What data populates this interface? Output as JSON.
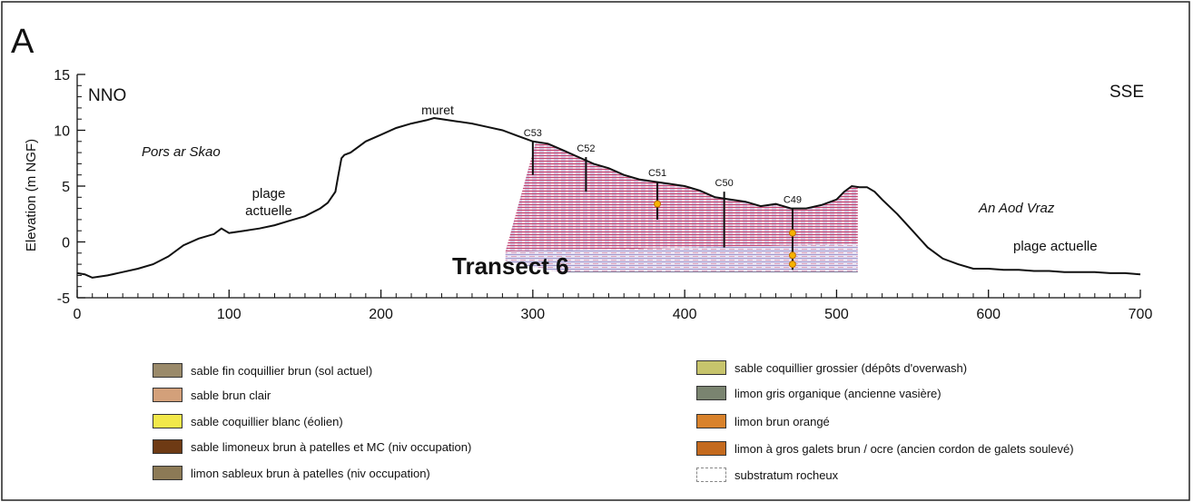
{
  "panel_label": "A",
  "chart_data": {
    "type": "line",
    "ylabel": "Elevation (m NGF)",
    "xlim": [
      0,
      700
    ],
    "ylim": [
      -5,
      15
    ],
    "x_ticks": [
      0,
      100,
      200,
      300,
      400,
      500,
      600,
      700
    ],
    "y_ticks": [
      -5,
      0,
      5,
      10,
      15
    ],
    "grid": false,
    "series": [
      {
        "x": [
          0,
          5,
          10,
          20,
          30,
          40,
          50,
          60,
          70,
          80,
          90,
          95,
          100,
          110,
          120,
          130,
          140,
          150,
          160,
          165,
          170,
          172,
          174,
          176,
          180,
          185,
          190,
          200,
          210,
          220,
          230,
          235,
          240,
          250,
          260,
          270,
          280,
          290,
          300,
          310,
          320,
          330,
          340,
          350,
          360,
          370,
          380,
          390,
          400,
          410,
          420,
          430,
          440,
          450,
          460,
          470,
          480,
          490,
          500,
          505,
          510,
          515,
          520,
          525,
          530,
          540,
          550,
          560,
          570,
          580,
          590,
          600,
          610,
          620,
          630,
          640,
          650,
          660,
          670,
          680,
          690,
          700
        ],
        "y": [
          -2.8,
          -2.9,
          -3.2,
          -3.0,
          -2.7,
          -2.4,
          -2.0,
          -1.3,
          -0.3,
          0.3,
          0.7,
          1.2,
          0.8,
          1.0,
          1.2,
          1.5,
          1.9,
          2.3,
          3.0,
          3.5,
          4.5,
          6.0,
          7.5,
          7.8,
          8.0,
          8.5,
          9.0,
          9.6,
          10.2,
          10.6,
          10.9,
          11.1,
          11.0,
          10.8,
          10.6,
          10.3,
          10.0,
          9.5,
          9.0,
          8.8,
          8.2,
          7.6,
          7.0,
          6.6,
          6.0,
          5.6,
          5.4,
          5.2,
          5.0,
          4.6,
          4.0,
          3.8,
          3.6,
          3.2,
          3.4,
          3.0,
          3.0,
          3.3,
          3.8,
          4.5,
          5.0,
          4.9,
          4.9,
          4.5,
          3.8,
          2.5,
          1.0,
          -0.5,
          -1.5,
          -2.0,
          -2.4,
          -2.4,
          -2.5,
          -2.5,
          -2.6,
          -2.6,
          -2.7,
          -2.7,
          -2.7,
          -2.8,
          -2.8,
          -2.9
        ]
      }
    ],
    "annotations": [
      {
        "text": "NNO"
      },
      {
        "text": "SSE"
      },
      {
        "text": "Pors ar Skao"
      },
      {
        "text": "plage"
      },
      {
        "text": "actuelle"
      },
      {
        "text": "muret"
      },
      {
        "text": "An Aod Vraz"
      },
      {
        "text": "plage actuelle"
      },
      {
        "text": "Transect 6"
      }
    ],
    "cores": [
      {
        "label": "C53",
        "x": 300,
        "top": 9.0,
        "bottom": 6.0
      },
      {
        "label": "C52",
        "x": 335,
        "top": 7.6,
        "bottom": 4.5
      },
      {
        "label": "C51",
        "x": 382,
        "top": 5.4,
        "bottom": 2.0
      },
      {
        "label": "C50",
        "x": 426,
        "top": 4.5,
        "bottom": -0.5
      },
      {
        "label": "C49",
        "x": 471,
        "top": 3.0,
        "bottom": -2.5
      }
    ],
    "section": {
      "x_start": 302,
      "x_end": 514,
      "bottom": -2.7
    }
  },
  "legend": {
    "left": [
      {
        "label": "sable fin coquillier brun  (sol actuel)",
        "color": "#9a8a6a"
      },
      {
        "label": "sable brun clair",
        "color": "#d3a07a"
      },
      {
        "label": "sable coquillier blanc (éolien)",
        "color": "#f2e84a"
      },
      {
        "label": "sable limoneux brun à patelles et MC (niv occupation)",
        "color": "#6e3a14"
      },
      {
        "label": "limon sableux brun à patelles   (niv occupation)",
        "color": "#8c7a56"
      }
    ],
    "right": [
      {
        "label": "sable coquillier grossier (dépôts d'overwash)",
        "color": "#c7c46c"
      },
      {
        "label": "limon gris organique (ancienne vasière)",
        "color": "#7a8470"
      },
      {
        "label": "limon brun orangé",
        "color": "#d9822b"
      },
      {
        "label": "limon à gros galets brun / ocre (ancien cordon de galets soulevé)",
        "color": "#c46a1e"
      },
      {
        "label": "substratum rocheux",
        "color": "#ffffff"
      }
    ]
  }
}
